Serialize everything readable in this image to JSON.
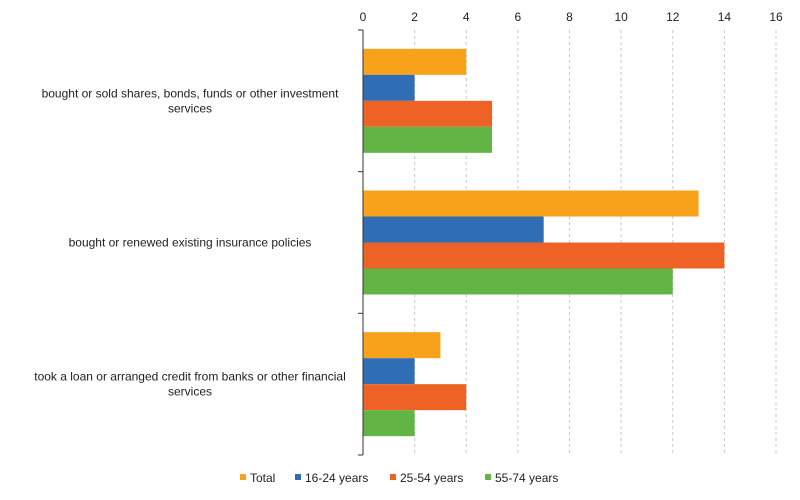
{
  "chart_data": {
    "type": "bar",
    "orientation": "horizontal",
    "categories": [
      [
        "bought or sold shares, bonds, funds or other investment",
        "services"
      ],
      [
        "bought or renewed existing insurance policies"
      ],
      [
        "took a loan or arranged credit from banks or other financial",
        "services"
      ]
    ],
    "series": [
      {
        "name": "Total",
        "color": "#f7a21a",
        "values": [
          4,
          13,
          3
        ]
      },
      {
        "name": "16-24 years",
        "color": "#2f6db5",
        "values": [
          2,
          7,
          2
        ]
      },
      {
        "name": "25-54 years",
        "color": "#ee6325",
        "values": [
          5,
          14,
          4
        ]
      },
      {
        "name": "55-74 years",
        "color": "#62b445",
        "values": [
          5,
          12,
          2
        ]
      }
    ],
    "xlim": [
      0,
      16
    ],
    "xticks": [
      0,
      2,
      4,
      6,
      8,
      10,
      12,
      14,
      16
    ],
    "x_axis_position": "top",
    "grid": "vertical dashed",
    "legend_position": "bottom"
  }
}
